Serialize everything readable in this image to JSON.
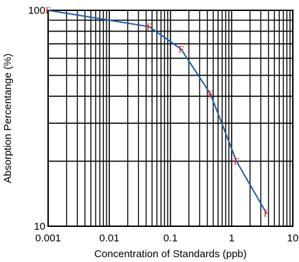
{
  "chart_data": {
    "type": "line",
    "title": "",
    "xlabel": "Concentration of Standards (ppb)",
    "ylabel": "Absorption Percentange (%)",
    "x_scale": "log",
    "y_scale": "log",
    "xlim": [
      0.001,
      10
    ],
    "ylim": [
      10,
      100
    ],
    "x_tick_labels": [
      "0.001",
      "0.01",
      "0.1",
      "1",
      "10"
    ],
    "y_tick_labels": [
      "10",
      "100"
    ],
    "grid": true,
    "marker_label": "F",
    "series": [
      {
        "color": "#1f5da6",
        "marker_color": "#e0201b",
        "x": [
          0.001,
          0.045,
          0.15,
          0.45,
          1.2,
          3.7
        ],
        "y": [
          100,
          84,
          66,
          41,
          20,
          11.5
        ]
      }
    ]
  }
}
